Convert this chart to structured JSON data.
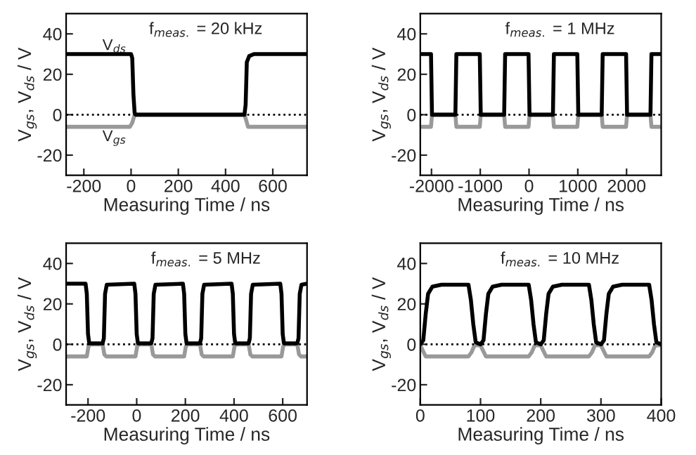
{
  "chart_data": [
    {
      "type": "line",
      "title": "f$_{meas.}$ = 20 kHz",
      "xlabel": "Measuring Time / ns",
      "ylabel": "V$_{gs}$, V$_{ds}$ / V",
      "xlim": [
        -275,
        745
      ],
      "xticks": [
        -200,
        0,
        200,
        400,
        600
      ],
      "ylim": [
        -30,
        50
      ],
      "yticks": [
        -20,
        0,
        20,
        40
      ],
      "grid": false,
      "line_style": "solid",
      "series": [
        {
          "color": "#999999",
          "x": [
            -275,
            -5,
            5,
            15,
            480,
            488,
            495,
            745
          ],
          "values": [
            -6,
            -6,
            -4,
            0,
            0,
            -3,
            -6,
            -6
          ]
        },
        {
          "color": "#000000",
          "x": [
            -275,
            0,
            5,
            10,
            15,
            20,
            480,
            485,
            490,
            500,
            520,
            745
          ],
          "values": [
            30,
            30,
            28,
            10,
            1,
            0,
            0,
            5,
            26,
            29,
            30,
            30
          ]
        }
      ],
      "ref_lines": [
        {
          "axis": "y",
          "value": 0,
          "line_style": "dotted",
          "color": "#000000"
        }
      ],
      "annotations": [
        "V$_{ds}$",
        "V$_{gs}$"
      ]
    },
    {
      "type": "line",
      "title": "f$_{meas.}$ = 1 MHz",
      "xlabel": "Measuring Time / ns",
      "ylabel": "V$_{gs}$, V$_{ds}$ / V",
      "xlim": [
        -2230,
        2710
      ],
      "xticks": [
        -2000,
        -1000,
        0,
        1000,
        2000
      ],
      "ylim": [
        -30,
        50
      ],
      "yticks": [
        -20,
        0,
        20,
        40
      ],
      "grid": false,
      "line_style": "solid",
      "series": [
        {
          "color": "#999999",
          "x": [
            -2230,
            -2010,
            -1990,
            -1510,
            -1490,
            -1010,
            -990,
            -510,
            -490,
            -10,
            10,
            490,
            510,
            990,
            1010,
            1490,
            1510,
            1990,
            2010,
            2490,
            2510,
            2710
          ],
          "values": [
            -6,
            -6,
            0,
            0,
            -6,
            -6,
            0,
            0,
            -6,
            -6,
            0,
            0,
            -6,
            -6,
            0,
            0,
            -6,
            -6,
            0,
            0,
            -6,
            -6
          ]
        },
        {
          "color": "#000000",
          "x": [
            -2230,
            -2010,
            -1990,
            -1510,
            -1490,
            -1010,
            -990,
            -510,
            -490,
            -10,
            10,
            490,
            510,
            990,
            1010,
            1490,
            1510,
            1990,
            2010,
            2490,
            2510,
            2710
          ],
          "values": [
            30,
            30,
            0,
            0,
            30,
            30,
            0,
            0,
            30,
            30,
            0,
            0,
            30,
            30,
            0,
            0,
            30,
            30,
            0,
            0,
            30,
            30
          ]
        }
      ],
      "ref_lines": [
        {
          "axis": "y",
          "value": 0,
          "line_style": "dotted",
          "color": "#000000"
        }
      ]
    },
    {
      "type": "line",
      "title": "f$_{meas.}$ = 5 MHz",
      "xlabel": "Measuring Time / ns",
      "ylabel": "V$_{gs}$, V$_{ds}$ / V",
      "xlim": [
        -290,
        700
      ],
      "xticks": [
        -200,
        0,
        200,
        400,
        600
      ],
      "ylim": [
        -30,
        50
      ],
      "yticks": [
        -20,
        0,
        20,
        40
      ],
      "grid": false,
      "line_style": "solid",
      "series": [
        {
          "color": "#999999",
          "x": [
            -290,
            -205,
            -198,
            -190,
            -140,
            -133,
            -125,
            -5,
            2,
            10,
            60,
            67,
            75,
            195,
            202,
            210,
            260,
            267,
            275,
            395,
            402,
            410,
            460,
            467,
            475,
            595,
            602,
            610,
            660,
            667,
            675,
            700
          ],
          "values": [
            -6,
            -6,
            -1,
            0,
            0,
            -5,
            -6,
            -6,
            -1,
            0,
            0,
            -5,
            -6,
            -6,
            -1,
            0,
            0,
            -5,
            -6,
            -6,
            -1,
            0,
            0,
            -5,
            -6,
            -6,
            -1,
            0,
            0,
            -5,
            -6,
            -6
          ]
        },
        {
          "color": "#000000",
          "x": [
            -290,
            -210,
            -205,
            -200,
            -195,
            -140,
            -135,
            -130,
            -123,
            -10,
            -5,
            0,
            5,
            60,
            65,
            70,
            77,
            190,
            195,
            200,
            205,
            260,
            265,
            270,
            277,
            390,
            395,
            400,
            405,
            460,
            465,
            470,
            477,
            590,
            595,
            600,
            605,
            660,
            665,
            670,
            677,
            700
          ],
          "values": [
            30,
            30,
            25,
            5,
            0.5,
            0.5,
            3,
            25,
            29.5,
            30,
            25,
            5,
            0.5,
            0.5,
            3,
            25,
            29.5,
            30,
            25,
            5,
            0.5,
            0.5,
            3,
            25,
            29.5,
            30,
            25,
            5,
            0.5,
            0.5,
            3,
            25,
            29.5,
            30,
            25,
            5,
            0.5,
            0.5,
            3,
            25,
            29.5,
            30
          ]
        }
      ],
      "ref_lines": [
        {
          "axis": "y",
          "value": 0,
          "line_style": "dotted",
          "color": "#000000"
        }
      ]
    },
    {
      "type": "line",
      "title": "f$_{meas.}$ = 10 MHz",
      "xlabel": "Measuring Time / ns",
      "ylabel": "V$_{gs}$, V$_{ds}$ / V",
      "xlim": [
        0,
        400
      ],
      "xticks": [
        0,
        100,
        200,
        300,
        400
      ],
      "ylim": [
        -30,
        50
      ],
      "yticks": [
        -20,
        0,
        20,
        40
      ],
      "grid": false,
      "line_style": "solid",
      "series": [
        {
          "color": "#999999",
          "x": [
            0,
            4,
            9,
            80,
            85,
            90,
            100,
            104,
            109,
            180,
            185,
            190,
            200,
            204,
            209,
            280,
            285,
            290,
            300,
            304,
            309,
            380,
            385,
            390,
            400
          ],
          "values": [
            -0.5,
            -3,
            -6,
            -6,
            -4,
            -0.5,
            -0.5,
            -3,
            -6,
            -6,
            -4,
            -0.5,
            -0.5,
            -3,
            -6,
            -6,
            -4,
            -0.5,
            -0.5,
            -3,
            -6,
            -6,
            -4,
            -0.5,
            -0.5
          ]
        },
        {
          "color": "#000000",
          "x": [
            0,
            5,
            9,
            13,
            20,
            35,
            80,
            84,
            88,
            92,
            100,
            105,
            109,
            113,
            120,
            135,
            180,
            184,
            188,
            192,
            200,
            205,
            209,
            213,
            220,
            235,
            280,
            284,
            288,
            292,
            300,
            305,
            309,
            313,
            320,
            335,
            380,
            384,
            388,
            392,
            400
          ],
          "values": [
            0,
            2,
            15,
            25,
            28.5,
            29.5,
            29.5,
            22,
            10,
            1,
            0,
            2,
            15,
            25,
            28.5,
            29.5,
            29.5,
            22,
            10,
            1,
            0,
            2,
            15,
            25,
            28.5,
            29.5,
            29.5,
            22,
            10,
            1,
            0,
            2,
            15,
            25,
            28.5,
            29.5,
            29.5,
            22,
            10,
            1,
            0
          ]
        }
      ],
      "ref_lines": [
        {
          "axis": "y",
          "value": 0,
          "line_style": "dotted",
          "color": "#000000"
        }
      ]
    }
  ]
}
